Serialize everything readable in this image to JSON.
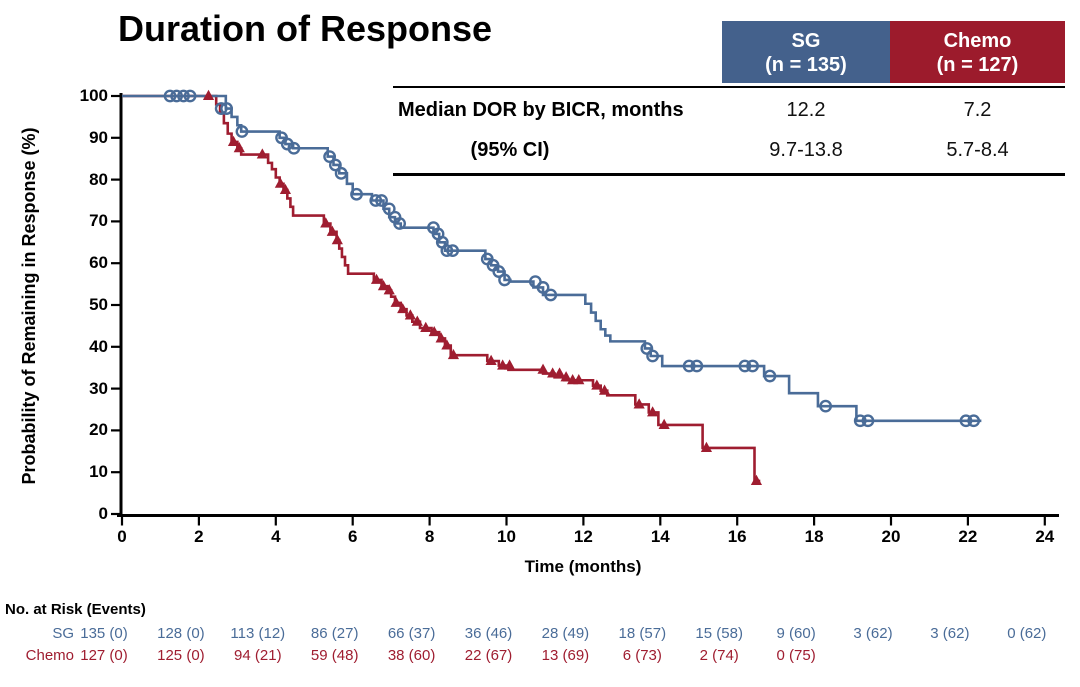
{
  "title": "Duration of Response",
  "colors": {
    "sg_header_bg": "#44618c",
    "chemo_header_bg": "#9c1b2c",
    "sg_series": "#4a6c98",
    "chemo_series": "#9f1d30",
    "axis": "#000000"
  },
  "summary_table": {
    "columns": [
      {
        "label": "SG",
        "sub": "(n = 135)",
        "color": "#44618c"
      },
      {
        "label": "Chemo",
        "sub": "(n = 127)",
        "color": "#9c1b2c"
      }
    ],
    "rows": [
      {
        "label": "Median DOR by BICR, months",
        "values": [
          "12.2",
          "7.2"
        ]
      },
      {
        "label": "(95% CI)",
        "values": [
          "9.7-13.8",
          "5.7-8.4"
        ]
      }
    ]
  },
  "chart_data": {
    "type": "line",
    "subtype": "kaplan-meier-step",
    "title": "Duration of Response",
    "xlabel": "Time (months)",
    "ylabel": "Probability of Remaining in Response (%)",
    "xlim": [
      0,
      24
    ],
    "ylim": [
      0,
      100
    ],
    "xticks": [
      0,
      2,
      4,
      6,
      8,
      10,
      12,
      14,
      16,
      18,
      20,
      22,
      24
    ],
    "yticks": [
      0,
      10,
      20,
      30,
      40,
      50,
      60,
      70,
      80,
      90,
      100
    ],
    "grid": false,
    "legend_position": "none",
    "series": [
      {
        "name": "SG",
        "color": "#4a6c98",
        "marker": "open-circle",
        "median_months": 12.2,
        "ci_95": "9.7-13.8",
        "steps": [
          [
            0,
            100
          ],
          [
            2.7,
            100
          ],
          [
            2.7,
            97
          ],
          [
            2.85,
            97
          ],
          [
            2.85,
            95
          ],
          [
            3.0,
            95
          ],
          [
            3.0,
            93
          ],
          [
            3.1,
            93
          ],
          [
            3.1,
            91.5
          ],
          [
            4.1,
            91.5
          ],
          [
            4.1,
            90
          ],
          [
            4.25,
            90
          ],
          [
            4.25,
            88.5
          ],
          [
            4.45,
            88.5
          ],
          [
            4.45,
            87.5
          ],
          [
            5.35,
            87.5
          ],
          [
            5.35,
            85.5
          ],
          [
            5.5,
            85.5
          ],
          [
            5.5,
            83.5
          ],
          [
            5.65,
            83.5
          ],
          [
            5.65,
            81.5
          ],
          [
            5.85,
            81.5
          ],
          [
            5.85,
            79
          ],
          [
            6.0,
            79
          ],
          [
            6.0,
            76.5
          ],
          [
            6.5,
            76.5
          ],
          [
            6.5,
            75
          ],
          [
            6.8,
            75
          ],
          [
            6.8,
            73
          ],
          [
            6.95,
            73
          ],
          [
            6.95,
            71
          ],
          [
            7.1,
            71
          ],
          [
            7.1,
            69.5
          ],
          [
            7.25,
            69.5
          ],
          [
            7.25,
            68.5
          ],
          [
            8.1,
            68.5
          ],
          [
            8.1,
            67
          ],
          [
            8.25,
            67
          ],
          [
            8.25,
            65
          ],
          [
            8.4,
            65
          ],
          [
            8.4,
            63
          ],
          [
            9.45,
            63
          ],
          [
            9.45,
            61
          ],
          [
            9.6,
            61
          ],
          [
            9.6,
            59.5
          ],
          [
            9.78,
            59.5
          ],
          [
            9.78,
            58
          ],
          [
            9.95,
            58
          ],
          [
            9.95,
            56
          ],
          [
            10.1,
            56
          ],
          [
            10.1,
            55.6
          ],
          [
            10.7,
            55.6
          ],
          [
            10.7,
            54.2
          ],
          [
            10.95,
            54.2
          ],
          [
            10.95,
            52.4
          ],
          [
            12.05,
            52.4
          ],
          [
            12.05,
            50.3
          ],
          [
            12.2,
            50.3
          ],
          [
            12.2,
            48.2
          ],
          [
            12.32,
            48.2
          ],
          [
            12.32,
            46.2
          ],
          [
            12.45,
            46.2
          ],
          [
            12.45,
            44.2
          ],
          [
            12.57,
            44.2
          ],
          [
            12.57,
            42.7
          ],
          [
            12.7,
            42.7
          ],
          [
            12.7,
            41.3
          ],
          [
            13.6,
            41.3
          ],
          [
            13.6,
            39.6
          ],
          [
            13.75,
            39.6
          ],
          [
            13.75,
            37.8
          ],
          [
            14.05,
            37.8
          ],
          [
            14.05,
            35.4
          ],
          [
            16.7,
            35.4
          ],
          [
            16.7,
            33
          ],
          [
            17.35,
            33
          ],
          [
            17.35,
            28.9
          ],
          [
            18.1,
            28.9
          ],
          [
            18.1,
            25.8
          ],
          [
            19.1,
            25.8
          ],
          [
            19.1,
            22.3
          ],
          [
            22.35,
            22.3
          ]
        ],
        "censors": [
          [
            1.25,
            100
          ],
          [
            1.42,
            100
          ],
          [
            1.6,
            100
          ],
          [
            1.77,
            100
          ],
          [
            2.58,
            97
          ],
          [
            2.72,
            97
          ],
          [
            3.12,
            91.5
          ],
          [
            4.15,
            90
          ],
          [
            4.3,
            88.5
          ],
          [
            4.47,
            87.5
          ],
          [
            5.4,
            85.5
          ],
          [
            5.55,
            83.5
          ],
          [
            5.7,
            81.5
          ],
          [
            6.1,
            76.5
          ],
          [
            6.6,
            75
          ],
          [
            6.75,
            75
          ],
          [
            6.95,
            73
          ],
          [
            7.1,
            71
          ],
          [
            7.22,
            69.5
          ],
          [
            8.1,
            68.5
          ],
          [
            8.22,
            67
          ],
          [
            8.33,
            65
          ],
          [
            8.45,
            63
          ],
          [
            8.6,
            63
          ],
          [
            9.5,
            61
          ],
          [
            9.65,
            59.5
          ],
          [
            9.8,
            58
          ],
          [
            9.95,
            56
          ],
          [
            10.75,
            55.6
          ],
          [
            10.95,
            54.2
          ],
          [
            11.15,
            52.4
          ],
          [
            13.65,
            39.6
          ],
          [
            13.8,
            37.8
          ],
          [
            14.75,
            35.4
          ],
          [
            14.95,
            35.4
          ],
          [
            16.2,
            35.4
          ],
          [
            16.4,
            35.4
          ],
          [
            16.85,
            33
          ],
          [
            18.3,
            25.8
          ],
          [
            19.2,
            22.3
          ],
          [
            19.4,
            22.3
          ],
          [
            21.95,
            22.3
          ],
          [
            22.15,
            22.3
          ]
        ]
      },
      {
        "name": "Chemo",
        "color": "#9f1d30",
        "marker": "filled-triangle",
        "median_months": 7.2,
        "ci_95": "5.7-8.4",
        "steps": [
          [
            0,
            100
          ],
          [
            2.45,
            100
          ],
          [
            2.45,
            98
          ],
          [
            2.55,
            98
          ],
          [
            2.55,
            96
          ],
          [
            2.65,
            96
          ],
          [
            2.65,
            93.5
          ],
          [
            2.75,
            93.5
          ],
          [
            2.75,
            91
          ],
          [
            2.85,
            91
          ],
          [
            2.85,
            89
          ],
          [
            3.0,
            89
          ],
          [
            3.0,
            87.5
          ],
          [
            3.1,
            87.5
          ],
          [
            3.1,
            86
          ],
          [
            3.8,
            86
          ],
          [
            3.8,
            84
          ],
          [
            3.9,
            84
          ],
          [
            3.9,
            82.5
          ],
          [
            4.0,
            82.5
          ],
          [
            4.0,
            80.5
          ],
          [
            4.1,
            80.5
          ],
          [
            4.1,
            79
          ],
          [
            4.2,
            79
          ],
          [
            4.2,
            77.5
          ],
          [
            4.3,
            77.5
          ],
          [
            4.3,
            75.5
          ],
          [
            4.38,
            75.5
          ],
          [
            4.38,
            73.5
          ],
          [
            4.45,
            73.5
          ],
          [
            4.45,
            71.4
          ],
          [
            5.25,
            71.4
          ],
          [
            5.25,
            69.5
          ],
          [
            5.42,
            69.5
          ],
          [
            5.42,
            67.5
          ],
          [
            5.58,
            67.5
          ],
          [
            5.58,
            65.5
          ],
          [
            5.65,
            65.5
          ],
          [
            5.65,
            63.5
          ],
          [
            5.72,
            63.5
          ],
          [
            5.72,
            61.5
          ],
          [
            5.8,
            61.5
          ],
          [
            5.8,
            59.5
          ],
          [
            5.88,
            59.5
          ],
          [
            5.88,
            57.5
          ],
          [
            6.55,
            57.5
          ],
          [
            6.55,
            56
          ],
          [
            6.75,
            56
          ],
          [
            6.75,
            54.5
          ],
          [
            6.9,
            54.5
          ],
          [
            6.9,
            53.5
          ],
          [
            7.0,
            53.5
          ],
          [
            7.0,
            52
          ],
          [
            7.1,
            52
          ],
          [
            7.1,
            50.5
          ],
          [
            7.25,
            50.5
          ],
          [
            7.25,
            49
          ],
          [
            7.4,
            49
          ],
          [
            7.4,
            47.5
          ],
          [
            7.55,
            47.5
          ],
          [
            7.55,
            46
          ],
          [
            7.75,
            46
          ],
          [
            7.75,
            44.5
          ],
          [
            8.05,
            44.5
          ],
          [
            8.05,
            43.5
          ],
          [
            8.25,
            43.5
          ],
          [
            8.25,
            42
          ],
          [
            8.4,
            42
          ],
          [
            8.4,
            40.3
          ],
          [
            8.55,
            40.3
          ],
          [
            8.55,
            38
          ],
          [
            9.5,
            38
          ],
          [
            9.5,
            36.6
          ],
          [
            9.8,
            36.6
          ],
          [
            9.8,
            35.5
          ],
          [
            10.05,
            35.5
          ],
          [
            10.05,
            34.5
          ],
          [
            10.95,
            34.5
          ],
          [
            10.95,
            33.6
          ],
          [
            11.25,
            33.6
          ],
          [
            11.25,
            32.7
          ],
          [
            11.5,
            32.7
          ],
          [
            11.5,
            32
          ],
          [
            12.25,
            32
          ],
          [
            12.25,
            30.7
          ],
          [
            12.45,
            30.7
          ],
          [
            12.45,
            29.5
          ],
          [
            12.62,
            29.5
          ],
          [
            12.62,
            28.4
          ],
          [
            13.35,
            28.4
          ],
          [
            13.35,
            26.2
          ],
          [
            13.7,
            26.2
          ],
          [
            13.7,
            24.3
          ],
          [
            13.95,
            24.3
          ],
          [
            13.95,
            21.3
          ],
          [
            15.1,
            21.3
          ],
          [
            15.1,
            15.8
          ],
          [
            16.45,
            15.8
          ],
          [
            16.45,
            7.9
          ],
          [
            16.6,
            7.9
          ]
        ],
        "censors": [
          [
            2.25,
            100
          ],
          [
            2.9,
            89
          ],
          [
            3.05,
            87.5
          ],
          [
            3.65,
            86
          ],
          [
            4.12,
            79
          ],
          [
            4.25,
            77.5
          ],
          [
            5.3,
            69.5
          ],
          [
            5.47,
            67.5
          ],
          [
            5.6,
            65.5
          ],
          [
            6.62,
            56
          ],
          [
            6.8,
            54.5
          ],
          [
            6.95,
            53.5
          ],
          [
            7.13,
            50.5
          ],
          [
            7.3,
            49
          ],
          [
            7.5,
            47.5
          ],
          [
            7.68,
            46
          ],
          [
            7.9,
            44.5
          ],
          [
            8.12,
            43.5
          ],
          [
            8.3,
            42
          ],
          [
            8.45,
            40.3
          ],
          [
            8.62,
            38
          ],
          [
            9.6,
            36.6
          ],
          [
            9.9,
            35.5
          ],
          [
            10.08,
            35.5
          ],
          [
            10.95,
            34.5
          ],
          [
            11.2,
            33.6
          ],
          [
            11.38,
            33.6
          ],
          [
            11.55,
            32.7
          ],
          [
            11.72,
            32
          ],
          [
            11.88,
            32
          ],
          [
            12.35,
            30.7
          ],
          [
            12.55,
            29.5
          ],
          [
            13.45,
            26.2
          ],
          [
            13.8,
            24.3
          ],
          [
            14.1,
            21.3
          ],
          [
            15.2,
            15.8
          ],
          [
            16.5,
            7.9
          ]
        ]
      }
    ]
  },
  "risk_table": {
    "title": "No. at Risk (Events)",
    "times": [
      0,
      2,
      4,
      6,
      8,
      10,
      12,
      14,
      16,
      18,
      20,
      22,
      24
    ],
    "rows": [
      {
        "name": "SG",
        "color": "#4a6c98",
        "values": [
          "135 (0)",
          "128 (0)",
          "113 (12)",
          "86 (27)",
          "66 (37)",
          "36 (46)",
          "28 (49)",
          "18 (57)",
          "15 (58)",
          "9 (60)",
          "3 (62)",
          "3 (62)",
          "0 (62)"
        ]
      },
      {
        "name": "Chemo",
        "color": "#9f1d30",
        "values": [
          "127 (0)",
          "125 (0)",
          "94 (21)",
          "59 (48)",
          "38 (60)",
          "22 (67)",
          "13 (69)",
          "6 (73)",
          "2 (74)",
          "0 (75)"
        ]
      }
    ]
  }
}
